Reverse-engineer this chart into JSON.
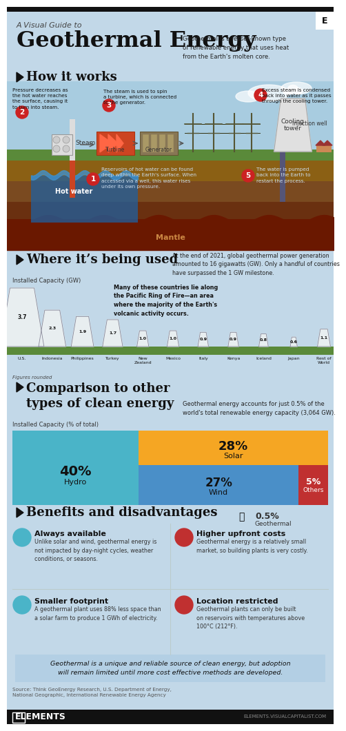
{
  "title_small": "A Visual Guide to",
  "title_large": "Geothermal Energy",
  "title_desc": "Geothermal is a lesser-known type\nof renewable energy that uses heat\nfrom the Earth's molten core.",
  "bg_light": "#c2d8e8",
  "bg_white": "#f0f4f7",
  "section_how": "How it works",
  "section_where": "Where it’s being used",
  "section_compare": "Comparison to other\ntypes of clean energy",
  "section_benefits": "Benefits and disadvantages",
  "where_desc": "At the end of 2021, global geothermal power generation\namounted to 16 gigawatts (GW). Only a handful of countries\nhave surpassed the 1 GW milestone.",
  "where_note": "Many of these countries lie along\nthe Pacific Ring of Fire—an area\nwhere the majority of the Earth's\nvolcanic activity occurs.",
  "countries": [
    "U.S.",
    "Indonesia",
    "Philippines",
    "Turkey",
    "New\nZealand",
    "Mexico",
    "Italy",
    "Kenya",
    "Iceland",
    "Japan",
    "Rest of\nWorld"
  ],
  "capacities": [
    3.7,
    2.3,
    1.9,
    1.7,
    1.0,
    1.0,
    0.9,
    0.9,
    0.8,
    0.6,
    1.1
  ],
  "compare_desc": "Geothermal energy accounts for just 0.5% of the\nworld's total renewable energy capacity (3,064 GW).",
  "installed_label": "Installed Capacity (% of total)",
  "energy_colors": [
    "#4ab4c8",
    "#f5a623",
    "#4a8fc8",
    "#c03030",
    "#777777"
  ],
  "benefit_titles": [
    "Always available",
    "Higher upfront costs",
    "Smaller footprint",
    "Location restricted"
  ],
  "benefit_descs": [
    "Unlike solar and wind, geothermal energy is\nnot impacted by day-night cycles, weather\nconditions, or seasons.",
    "Geothermal energy is a relatively small\nmarket, so building plants is very costly.",
    "A geothermal plant uses 88% less space than\na solar farm to produce 1 GWh of electricity.",
    "Geothermal plants can only be built\non reservoirs with temperatures above\n100°C (212°F)."
  ],
  "footer_text": "Geothermal is a unique and reliable source of clean energy, but adoption\nwill remain limited until more cost effective methods are developed.",
  "source_text": "Source: Think GeoEnergy Research, U.S. Department of Energy,\nNational Geographic, International Renewable Energy Agency",
  "logo_text": "ELEMENTS",
  "credit_text": "ELEMENTS.VISUALCAPITALIST.COM",
  "how_steps": [
    {
      "num": "1",
      "text": "Reservoirs of hot water can be found\ndeep within the Earth's surface. When\naccessed via a well, this water rises\nunder its own pressure."
    },
    {
      "num": "2",
      "text": "Pressure decreases as\nthe hot water reaches\nthe surface, causing it\nto turn into steam."
    },
    {
      "num": "3",
      "text": "The steam is used to spin\na turbine, which is connected\nto the generator."
    },
    {
      "num": "4",
      "text": "Excess steam is condensed\nback into water as it passes\nthrough the cooling tower."
    },
    {
      "num": "5",
      "text": "The water is pumped\nback into the Earth to\nrestart the process."
    }
  ],
  "sky_color": "#a8cce0",
  "grass_color": "#5a8a3a",
  "ground1": "#8b6014",
  "ground2": "#7a4a20",
  "ground3": "#6a3010",
  "ground4": "#8b2000",
  "mantle_color": "#6a1800",
  "water_color": "#2060a0",
  "pipe_color": "#cc4422",
  "step_color": "#cc2222"
}
